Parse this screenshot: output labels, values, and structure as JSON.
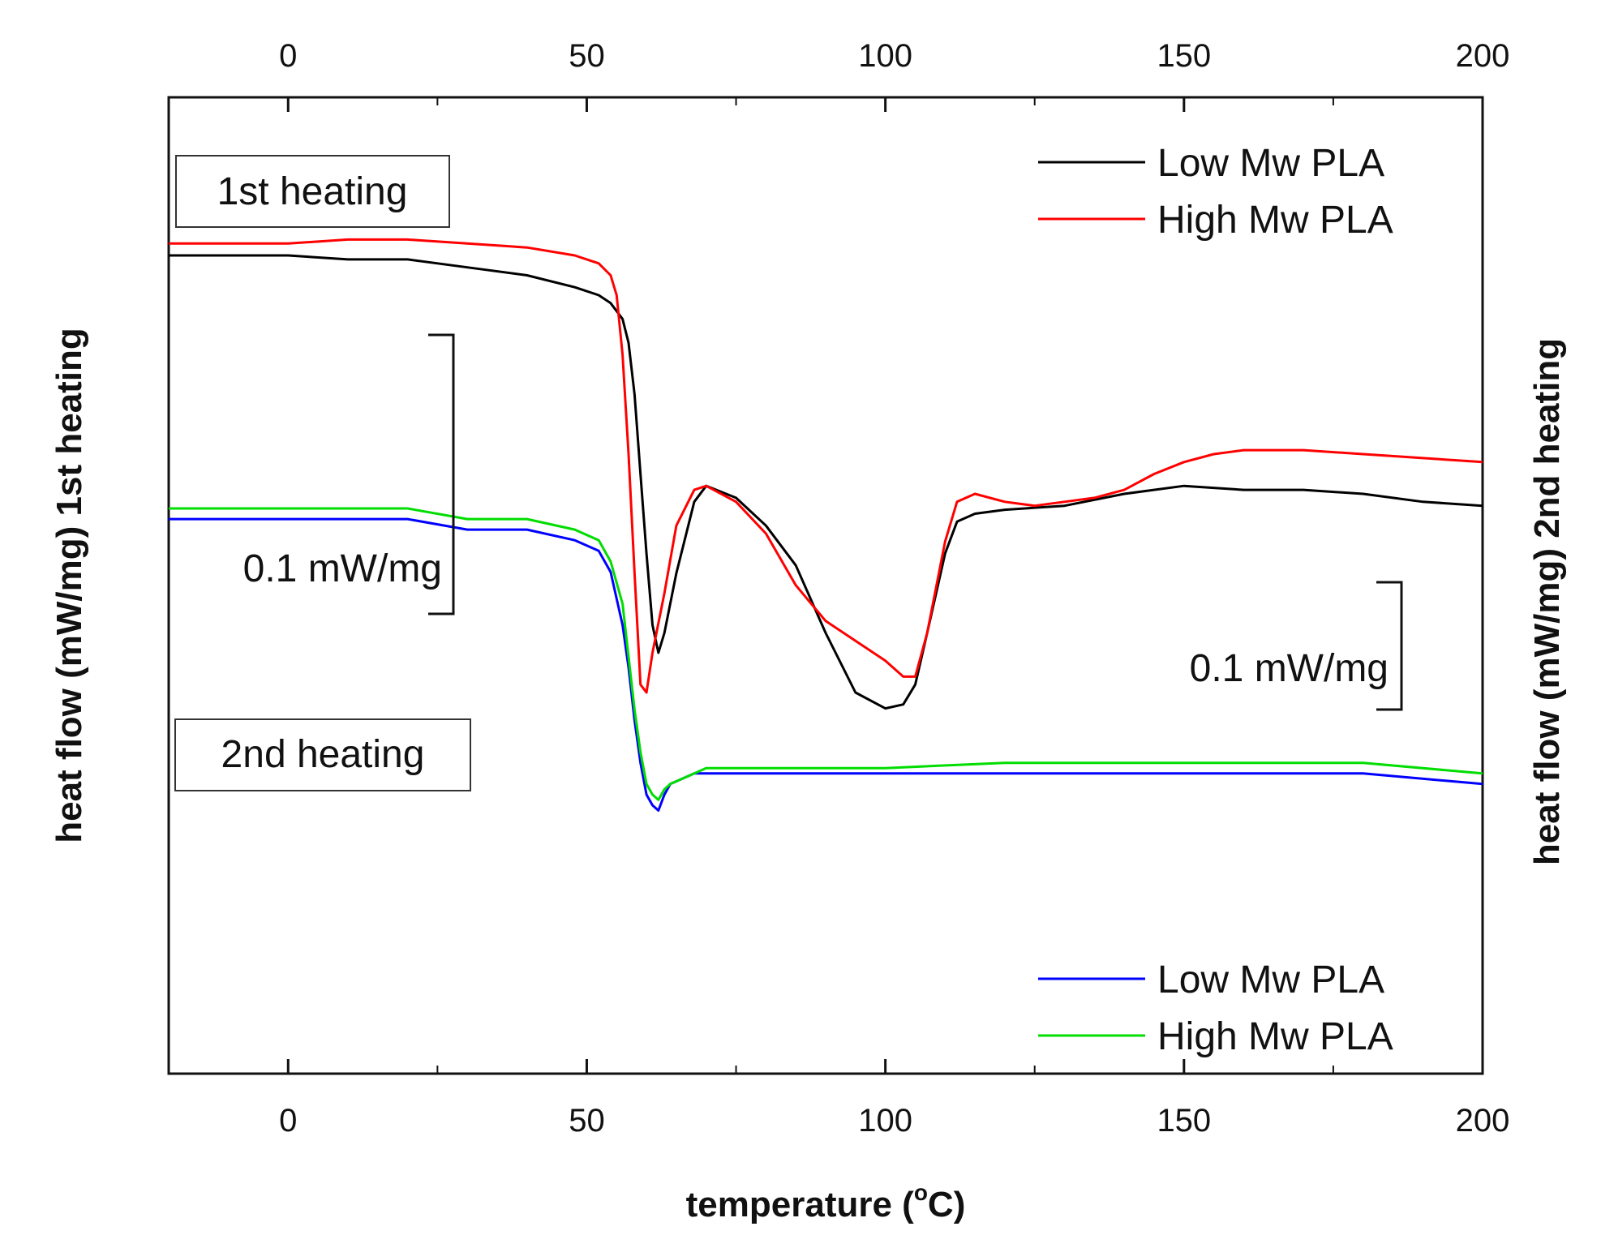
{
  "chart_data": {
    "type": "line",
    "xlabel": "temperature (°C)",
    "xlabel_parts": [
      "temperature (",
      "o",
      "C)"
    ],
    "ylabel_left": "heat flow (mW/mg) 1st heating",
    "ylabel_right": "heat flow (mW/mg) 2nd heating",
    "xlim": [
      -20,
      200
    ],
    "x_ticks": [
      0,
      50,
      100,
      150,
      200
    ],
    "x_tick_labels": [
      "0",
      "50",
      "100",
      "150",
      "200"
    ],
    "grid": false,
    "annotations": {
      "box_first": "1st heating",
      "box_second": "2nd heating",
      "scale_left": "0.1 mW/mg",
      "scale_right": "0.1 mW/mg"
    },
    "legend_first": {
      "placement": "top-right",
      "entries": [
        {
          "label": "Low Mw PLA",
          "color": "#000000"
        },
        {
          "label": "High Mw PLA",
          "color": "#ff0000"
        }
      ]
    },
    "legend_second": {
      "placement": "bottom-right",
      "entries": [
        {
          "label": "Low Mw PLA",
          "color": "#0000ff"
        },
        {
          "label": "High Mw PLA",
          "color": "#00dd00"
        }
      ]
    },
    "series": [
      {
        "name": "Low Mw PLA",
        "panel": "1st heating",
        "color": "#000000",
        "x": [
          -20,
          -10,
          0,
          10,
          20,
          30,
          40,
          48,
          52,
          54,
          56,
          57,
          58,
          59,
          60,
          61,
          62,
          63,
          65,
          68,
          70,
          75,
          80,
          85,
          90,
          95,
          100,
          103,
          105,
          107,
          110,
          112,
          115,
          120,
          130,
          140,
          150,
          160,
          170,
          180,
          190,
          200
        ],
        "y": [
          1.0,
          1.0,
          1.0,
          0.99,
          0.99,
          0.97,
          0.95,
          0.92,
          0.9,
          0.88,
          0.84,
          0.78,
          0.65,
          0.45,
          0.25,
          0.07,
          0.0,
          0.05,
          0.2,
          0.38,
          0.42,
          0.39,
          0.32,
          0.22,
          0.05,
          -0.1,
          -0.14,
          -0.13,
          -0.08,
          0.05,
          0.25,
          0.33,
          0.35,
          0.36,
          0.37,
          0.4,
          0.42,
          0.41,
          0.41,
          0.4,
          0.38,
          0.37
        ]
      },
      {
        "name": "High Mw PLA",
        "panel": "1st heating",
        "color": "#ff0000",
        "x": [
          -20,
          -10,
          0,
          10,
          20,
          30,
          40,
          48,
          52,
          54,
          55,
          56,
          57,
          58,
          59,
          60,
          61,
          63,
          65,
          68,
          70,
          75,
          80,
          85,
          90,
          95,
          100,
          103,
          105,
          107,
          110,
          112,
          115,
          120,
          125,
          130,
          135,
          140,
          145,
          150,
          155,
          160,
          170,
          180,
          190,
          200
        ],
        "y": [
          1.03,
          1.03,
          1.03,
          1.04,
          1.04,
          1.03,
          1.02,
          1.0,
          0.98,
          0.95,
          0.9,
          0.75,
          0.5,
          0.2,
          -0.08,
          -0.1,
          0.0,
          0.15,
          0.32,
          0.41,
          0.42,
          0.38,
          0.3,
          0.17,
          0.08,
          0.03,
          -0.02,
          -0.06,
          -0.06,
          0.05,
          0.28,
          0.38,
          0.4,
          0.38,
          0.37,
          0.38,
          0.39,
          0.41,
          0.45,
          0.48,
          0.5,
          0.51,
          0.51,
          0.5,
          0.49,
          0.48
        ]
      },
      {
        "name": "Low Mw PLA",
        "panel": "2nd heating",
        "color": "#0000ff",
        "x": [
          -20,
          -10,
          0,
          10,
          20,
          30,
          40,
          48,
          52,
          54,
          56,
          57,
          58,
          59,
          60,
          61,
          62,
          63,
          64,
          66,
          68,
          70,
          80,
          100,
          120,
          140,
          160,
          180,
          200
        ],
        "y": [
          0.56,
          0.56,
          0.56,
          0.56,
          0.56,
          0.55,
          0.55,
          0.54,
          0.53,
          0.51,
          0.46,
          0.42,
          0.37,
          0.33,
          0.3,
          0.29,
          0.285,
          0.3,
          0.31,
          0.315,
          0.32,
          0.32,
          0.32,
          0.32,
          0.32,
          0.32,
          0.32,
          0.32,
          0.31
        ]
      },
      {
        "name": "High Mw PLA",
        "panel": "2nd heating",
        "color": "#00dd00",
        "x": [
          -20,
          -10,
          0,
          10,
          20,
          30,
          40,
          48,
          52,
          54,
          56,
          57,
          58,
          59,
          60,
          61,
          62,
          63,
          64,
          66,
          68,
          70,
          80,
          100,
          120,
          140,
          160,
          180,
          200
        ],
        "y": [
          0.57,
          0.57,
          0.57,
          0.57,
          0.57,
          0.56,
          0.56,
          0.55,
          0.54,
          0.52,
          0.48,
          0.43,
          0.38,
          0.34,
          0.31,
          0.3,
          0.295,
          0.305,
          0.31,
          0.315,
          0.32,
          0.325,
          0.325,
          0.325,
          0.33,
          0.33,
          0.33,
          0.33,
          0.32
        ]
      }
    ]
  }
}
